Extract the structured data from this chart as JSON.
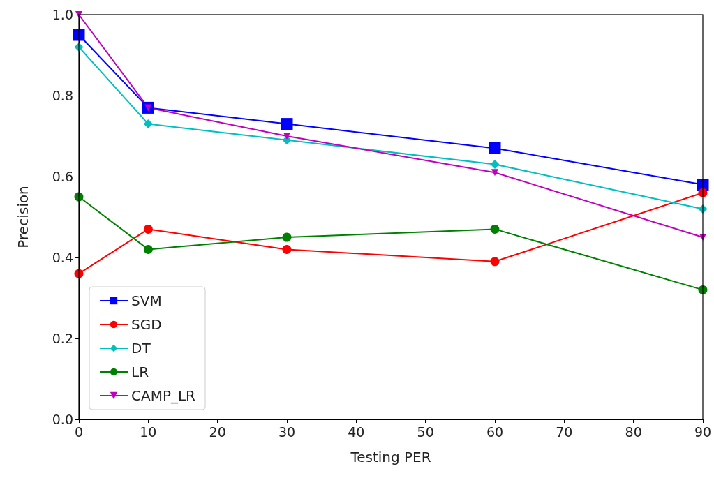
{
  "chart_data": {
    "type": "line",
    "xlabel": "Testing PER",
    "ylabel": "Precision",
    "x": [
      0,
      10,
      30,
      60,
      90
    ],
    "series": [
      {
        "name": "SVM",
        "color": "#0000ff",
        "marker": "square",
        "values": [
          0.95,
          0.77,
          0.73,
          0.67,
          0.58
        ]
      },
      {
        "name": "SGD",
        "color": "#ff0000",
        "marker": "circle",
        "values": [
          0.36,
          0.47,
          0.42,
          0.39,
          0.56
        ]
      },
      {
        "name": "DT",
        "color": "#00bfbf",
        "marker": "diamond",
        "values": [
          0.92,
          0.73,
          0.69,
          0.63,
          0.52
        ]
      },
      {
        "name": "LR",
        "color": "#008000",
        "marker": "circle",
        "values": [
          0.55,
          0.42,
          0.45,
          0.47,
          0.32
        ]
      },
      {
        "name": "CAMP_LR",
        "color": "#bf00bf",
        "marker": "triangle",
        "values": [
          1.0,
          0.77,
          0.7,
          0.61,
          0.45
        ]
      }
    ],
    "xlim": [
      0,
      90
    ],
    "xticks": [
      0,
      10,
      20,
      30,
      40,
      50,
      60,
      70,
      80,
      90
    ],
    "ylim": [
      0,
      1.0
    ],
    "yticks": [
      {
        "value": 0,
        "label": "0.0"
      },
      0.2,
      0.4,
      0.6,
      0.8,
      {
        "value": 1,
        "label": "1.0"
      }
    ],
    "grid": false,
    "legend": "bottom left",
    "line_style": "solid"
  }
}
